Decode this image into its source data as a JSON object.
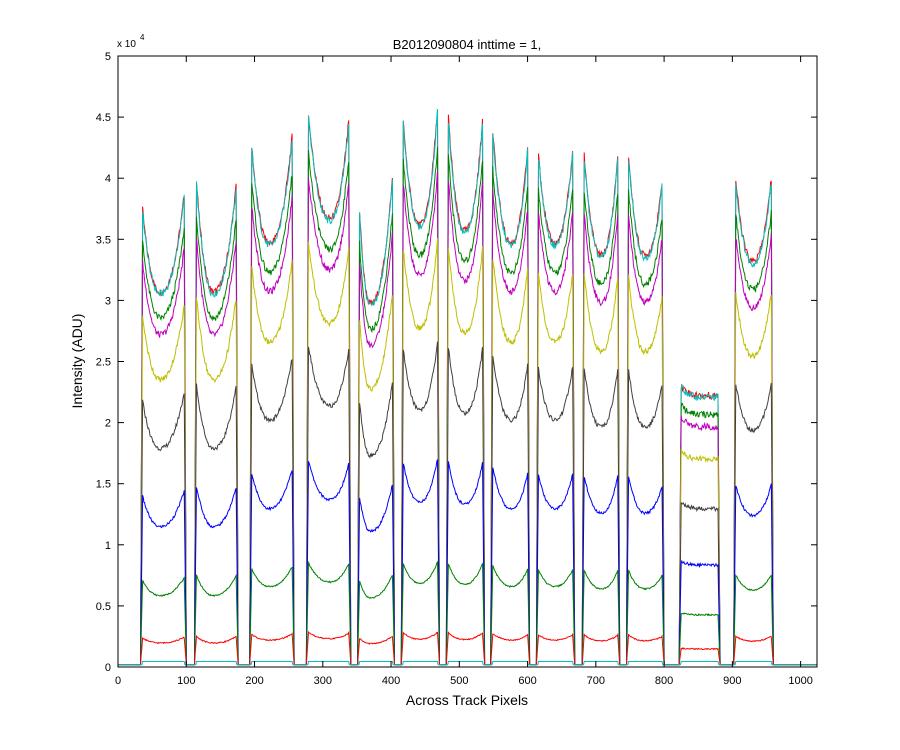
{
  "chart_data": {
    "type": "line",
    "title": "B2012090804 inttime = 1,",
    "xlabel": "Across Track Pixels",
    "ylabel": "Intensity (ADU)",
    "xlim": [
      0,
      1024
    ],
    "ylim": [
      0,
      5
    ],
    "y_multiplier_label": "x 10",
    "y_multiplier_exponent": "4",
    "xticks": [
      0,
      100,
      200,
      300,
      400,
      500,
      600,
      700,
      800,
      900,
      1000
    ],
    "yticks": [
      0,
      0.5,
      1,
      1.5,
      2,
      2.5,
      3,
      3.5,
      4,
      4.5,
      5
    ],
    "xtick_labels": [
      "0",
      "100",
      "200",
      "300",
      "400",
      "500",
      "600",
      "700",
      "800",
      "900",
      "1000"
    ],
    "ytick_labels": [
      "0",
      "0.5",
      "1",
      "1.5",
      "2",
      "2.5",
      "3",
      "3.5",
      "4",
      "4.5",
      "5"
    ],
    "grid": false,
    "legend": "none",
    "background_level": 0.02,
    "bumps": [
      {
        "x0": 33,
        "x1": 100,
        "min_x": 62,
        "edge_peaks": [
          3.9,
          4.0
        ],
        "dip": 3.05
      },
      {
        "x0": 112,
        "x1": 176,
        "min_x": 140,
        "edge_peaks": [
          4.2,
          4.1
        ],
        "dip": 3.05
      },
      {
        "x0": 193,
        "x1": 258,
        "min_x": 222,
        "edge_peaks": [
          4.45,
          4.5
        ],
        "dip": 3.45
      },
      {
        "x0": 276,
        "x1": 341,
        "min_x": 310,
        "edge_peaks": [
          4.7,
          4.65
        ],
        "dip": 3.65
      },
      {
        "x0": 351,
        "x1": 405,
        "min_x": 370,
        "edge_peaks": [
          4.05,
          4.2
        ],
        "dip": 2.95
      },
      {
        "x0": 415,
        "x1": 471,
        "min_x": 442,
        "edge_peaks": [
          4.7,
          4.8
        ],
        "dip": 3.6
      },
      {
        "x0": 481,
        "x1": 537,
        "min_x": 508,
        "edge_peaks": [
          4.75,
          4.7
        ],
        "dip": 3.55
      },
      {
        "x0": 546,
        "x1": 603,
        "min_x": 576,
        "edge_peaks": [
          4.6,
          4.45
        ],
        "dip": 3.45
      },
      {
        "x0": 613,
        "x1": 669,
        "min_x": 640,
        "edge_peaks": [
          4.4,
          4.4
        ],
        "dip": 3.45
      },
      {
        "x0": 680,
        "x1": 735,
        "min_x": 708,
        "edge_peaks": [
          4.4,
          4.4
        ],
        "dip": 3.35
      },
      {
        "x0": 745,
        "x1": 800,
        "min_x": 772,
        "edge_peaks": [
          4.4,
          4.1
        ],
        "dip": 3.35
      },
      {
        "x0": 822,
        "x1": 882,
        "min_x": 852,
        "edge_peaks": [
          2.3,
          2.2
        ],
        "dip": 2.2
      },
      {
        "x0": 902,
        "x1": 960,
        "min_x": 930,
        "edge_peaks": [
          4.15,
          4.15
        ],
        "dip": 3.3
      }
    ],
    "series": [
      {
        "color": "#ff0000",
        "scale": 1.0
      },
      {
        "color": "#00bfbf",
        "scale": 0.995
      },
      {
        "color": "#008000",
        "scale": 0.93
      },
      {
        "color": "#bf00bf",
        "scale": 0.885
      },
      {
        "color": "#bfbf00",
        "scale": 0.765
      },
      {
        "color": "#404040",
        "scale": 0.58
      },
      {
        "color": "#0000ff",
        "scale": 0.37
      },
      {
        "color": "#008000",
        "scale": 0.185
      },
      {
        "color": "#ff0000",
        "scale": 0.058
      },
      {
        "color": "#00bfbf",
        "scale": 0.0
      }
    ]
  }
}
